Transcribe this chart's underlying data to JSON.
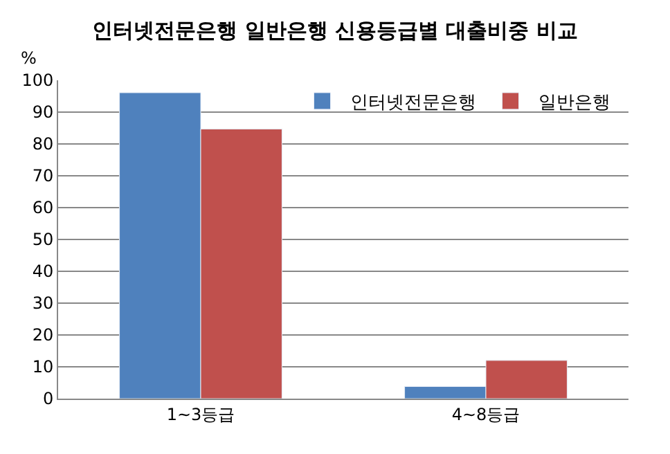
{
  "chart_data": {
    "type": "bar",
    "title": "인터넷전문은행 일반은행 신용등급별 대출비중 비교",
    "ylabel": "%",
    "categories": [
      "1~3등급",
      "4~8등급"
    ],
    "series": [
      {
        "name": "인터넷전문은행",
        "color": "#4f81bd",
        "values": [
          96.1,
          3.8
        ]
      },
      {
        "name": "일반은행",
        "color": "#c0504d",
        "values": [
          84.7,
          12.0
        ]
      }
    ],
    "ylim": [
      0,
      100
    ],
    "yticks": [
      0,
      10,
      20,
      30,
      40,
      50,
      60,
      70,
      80,
      90,
      100
    ],
    "grid": "y",
    "legend": "top right"
  }
}
